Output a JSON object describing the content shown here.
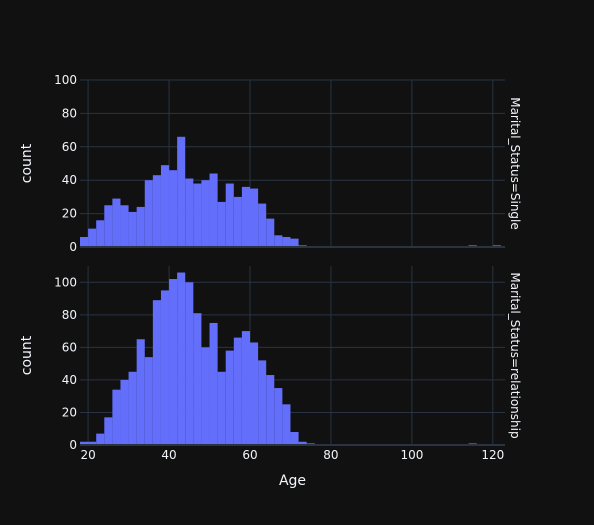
{
  "chart_data": {
    "type": "bar",
    "subtype": "histogram-facets",
    "xlabel": "Age",
    "xlim": [
      18,
      123
    ],
    "x_ticks": [
      20,
      40,
      60,
      80,
      100,
      120
    ],
    "bin_start": 18,
    "bin_width": 2,
    "bar_color": "#636efa",
    "background": "#111111",
    "grid": true,
    "panels": [
      {
        "facet_label": "Marital_Status=Single",
        "ylabel": "count",
        "ylim": [
          0,
          100
        ],
        "y_ticks": [
          0,
          20,
          40,
          60,
          80,
          100
        ],
        "values": [
          6,
          11,
          16,
          25,
          29,
          25,
          21,
          24,
          40,
          43,
          49,
          46,
          66,
          41,
          38,
          40,
          44,
          27,
          38,
          30,
          36,
          35,
          26,
          17,
          7,
          6,
          5,
          1,
          0,
          0,
          0,
          0,
          0,
          0,
          0,
          0,
          0,
          0,
          0,
          0,
          0,
          0,
          0,
          0,
          0,
          0,
          0,
          0,
          1,
          0,
          0,
          1
        ]
      },
      {
        "facet_label": "Marital_Status=relationship",
        "ylabel": "count",
        "ylim": [
          0,
          110
        ],
        "y_ticks": [
          0,
          20,
          40,
          60,
          80,
          100
        ],
        "values": [
          2,
          2,
          7,
          17,
          34,
          40,
          45,
          65,
          54,
          89,
          95,
          102,
          106,
          100,
          81,
          60,
          75,
          45,
          58,
          66,
          70,
          63,
          52,
          43,
          35,
          25,
          8,
          2,
          1,
          0,
          0,
          0,
          0,
          0,
          0,
          0,
          0,
          0,
          0,
          0,
          0,
          0,
          0,
          0,
          0,
          0,
          0,
          0,
          1,
          0,
          0,
          0
        ]
      }
    ]
  }
}
